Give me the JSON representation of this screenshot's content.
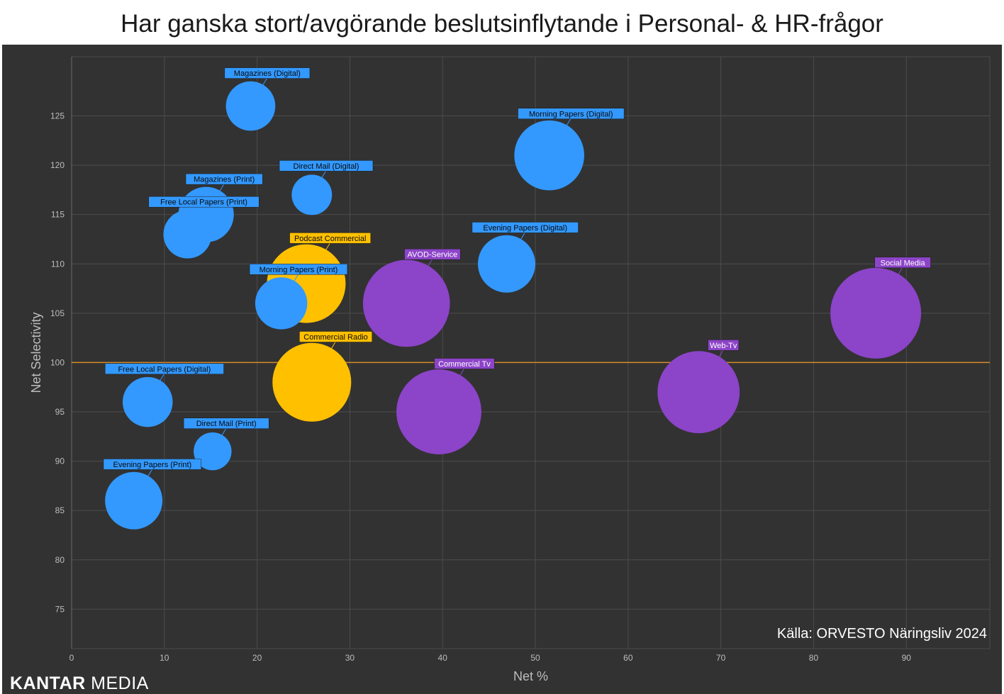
{
  "title": "Har ganska stort/avgörande beslutsinflytande i Personal- & HR-frågor",
  "source": "Källa: ORVESTO Näringsliv 2024",
  "brand": {
    "bold": "KANTAR",
    "light": "MEDIA"
  },
  "colors": {
    "blue": "#3399ff",
    "yellow": "#ffc000",
    "purple": "#8c44c8",
    "reference_line": "#d98a2a",
    "background": "#323232"
  },
  "chart_data": {
    "type": "bubble",
    "title": "Har ganska stort/avgörande beslutsinflytande i Personal- & HR-frågor",
    "xlabel": "Net %",
    "ylabel": "Net Selectivity",
    "xlim": [
      0,
      99
    ],
    "ylim": [
      71,
      131
    ],
    "xticks": [
      0,
      10,
      20,
      30,
      40,
      50,
      60,
      70,
      80,
      90
    ],
    "yticks": [
      75,
      80,
      85,
      90,
      95,
      100,
      105,
      110,
      115,
      120,
      125
    ],
    "reference_line_y": 100,
    "grid": true,
    "points": [
      {
        "label": "Magazines (Digital)",
        "x": 19.3,
        "y": 126,
        "size": 19.3,
        "group": "blue"
      },
      {
        "label": "Morning Papers (Digital)",
        "x": 51.5,
        "y": 121,
        "size": 51.5,
        "group": "blue"
      },
      {
        "label": "Direct Mail (Digital)",
        "x": 25.9,
        "y": 117,
        "size": 10,
        "group": "blue"
      },
      {
        "label": "Magazines (Print)",
        "x": 14.5,
        "y": 115,
        "size": 27,
        "group": "blue"
      },
      {
        "label": "Free Local Papers (Print)",
        "x": 12.5,
        "y": 113,
        "size": 18,
        "group": "blue"
      },
      {
        "label": "Evening Papers (Digital)",
        "x": 46.9,
        "y": 110,
        "size": 30,
        "group": "blue"
      },
      {
        "label": "Podcast Commercial",
        "x": 25.3,
        "y": 108,
        "size": 70,
        "group": "yellow"
      },
      {
        "label": "Morning Papers (Print)",
        "x": 22.6,
        "y": 106,
        "size": 22.6,
        "group": "blue"
      },
      {
        "label": "AVOD-Service",
        "x": 36.1,
        "y": 106,
        "size": 90,
        "group": "purple"
      },
      {
        "label": "Social Media",
        "x": 86.7,
        "y": 105,
        "size": 100,
        "group": "purple"
      },
      {
        "label": "Commercial Radio",
        "x": 25.9,
        "y": 98,
        "size": 70,
        "group": "yellow"
      },
      {
        "label": "Web-Tv",
        "x": 67.6,
        "y": 97,
        "size": 78,
        "group": "purple"
      },
      {
        "label": "Free Local Papers (Digital)",
        "x": 8.2,
        "y": 96,
        "size": 20,
        "group": "blue"
      },
      {
        "label": "Commercial Tv",
        "x": 39.6,
        "y": 95,
        "size": 85,
        "group": "purple"
      },
      {
        "label": "Direct Mail (Print)",
        "x": 15.2,
        "y": 91,
        "size": 8,
        "group": "blue"
      },
      {
        "label": "Evening Papers (Print)",
        "x": 6.7,
        "y": 86,
        "size": 30,
        "group": "blue"
      }
    ]
  }
}
